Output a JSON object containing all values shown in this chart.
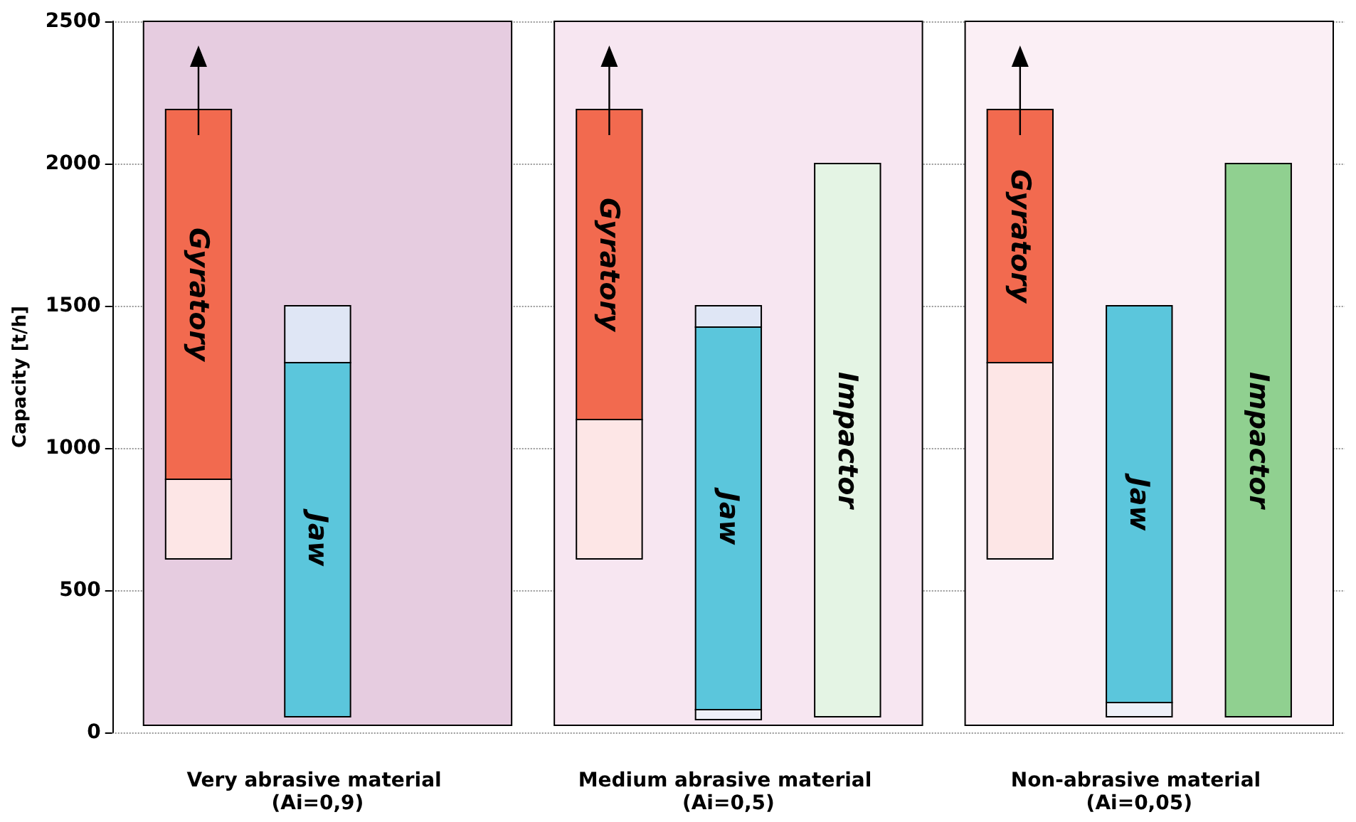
{
  "chart_data": {
    "type": "bar",
    "ylabel": "Capacity [t/h]",
    "categories": [
      "Very abrasive material (Ai=0,9)",
      "Medium abrasive material (Ai=0,5)",
      "Non-abrasive material (Ai=0,05)"
    ],
    "series": [
      {
        "name": "Gyratory",
        "color": "#f26a4f",
        "base": [
          890,
          1100,
          1300
        ],
        "values": [
          1300,
          1090,
          890
        ]
      },
      {
        "color": "#fde6e6",
        "base": [
          610,
          610,
          610
        ],
        "values": [
          280,
          490,
          690
        ]
      },
      {
        "name": "Jaw",
        "color": "#5bc6dc",
        "base": [
          55,
          80,
          105
        ],
        "values": [
          1245,
          1345,
          1395
        ]
      },
      {
        "color": "#dfe6f5",
        "base": [
          1300,
          1425,
          null
        ],
        "values": [
          200,
          75,
          null
        ]
      },
      {
        "color": "#eef0f8",
        "base": [
          null,
          45,
          55
        ],
        "values": [
          null,
          35,
          50
        ]
      },
      {
        "name": "Impactor",
        "colors": [
          null,
          "#e4f4e4",
          "#90d090"
        ],
        "base": [
          null,
          55,
          55
        ],
        "values": [
          null,
          1945,
          1945
        ]
      }
    ],
    "ylim": [
      0,
      2500
    ],
    "yticks": [
      0,
      500,
      1000,
      1500,
      2000,
      2500
    ],
    "grid": "y"
  }
}
